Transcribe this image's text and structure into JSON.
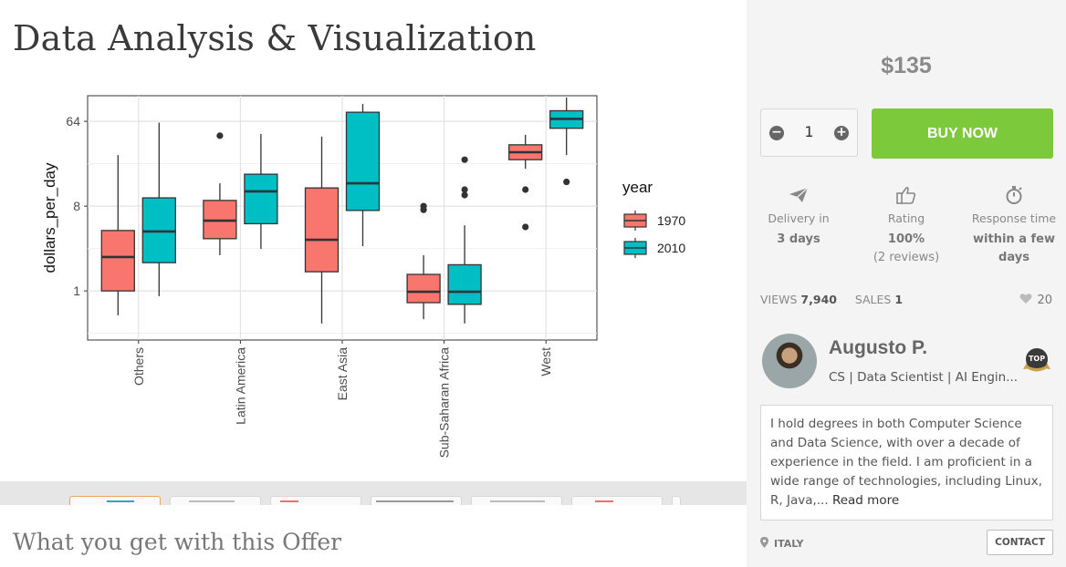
{
  "page": {
    "title": "Data Analysis & Visualization",
    "offer_heading": "What you get with this Offer"
  },
  "chart_data": {
    "type": "boxplot",
    "xlabel": "",
    "ylabel": "dollars_per_day",
    "y_scale": "log2",
    "y_ticks": [
      1,
      8,
      64
    ],
    "y_tick_labels": [
      "1",
      "8",
      "64"
    ],
    "categories": [
      "Others",
      "Latin America",
      "East Asia",
      "Sub-Saharan Africa",
      "West"
    ],
    "legend": {
      "title": "year",
      "position": "right"
    },
    "grid": true,
    "series": [
      {
        "name": "1970",
        "color": "#F8766D",
        "boxes": [
          {
            "whisker_low": 0.55,
            "q1": 1.0,
            "median": 2.3,
            "q3": 4.4,
            "whisker_high": 28,
            "outliers": []
          },
          {
            "whisker_low": 2.4,
            "q1": 3.6,
            "median": 5.6,
            "q3": 9.2,
            "whisker_high": 14,
            "outliers": [
              45
            ]
          },
          {
            "whisker_low": 0.45,
            "q1": 1.6,
            "median": 3.5,
            "q3": 12.5,
            "whisker_high": 44,
            "outliers": []
          },
          {
            "whisker_low": 0.5,
            "q1": 0.75,
            "median": 0.98,
            "q3": 1.5,
            "whisker_high": 2.4,
            "outliers": [
              7.3,
              8.0
            ]
          },
          {
            "whisker_low": 20,
            "q1": 25,
            "median": 30,
            "q3": 36,
            "whisker_high": 46,
            "outliers": [
              12,
              4.8
            ]
          }
        ]
      },
      {
        "name": "2010",
        "color": "#00BFC4",
        "boxes": [
          {
            "whisker_low": 0.88,
            "q1": 2.0,
            "median": 4.3,
            "q3": 9.8,
            "whisker_high": 62,
            "outliers": []
          },
          {
            "whisker_low": 2.8,
            "q1": 5.2,
            "median": 11.5,
            "q3": 17.5,
            "whisker_high": 47,
            "outliers": []
          },
          {
            "whisker_low": 3.0,
            "q1": 7.2,
            "median": 14.0,
            "q3": 80,
            "whisker_high": 98,
            "outliers": []
          },
          {
            "whisker_low": 0.45,
            "q1": 0.72,
            "median": 0.98,
            "q3": 1.9,
            "whisker_high": 5.0,
            "outliers": [
              10.5,
              12,
              25
            ]
          },
          {
            "whisker_low": 28,
            "q1": 54,
            "median": 68,
            "q3": 83,
            "whisker_high": 115,
            "outliers": [
              14.5
            ]
          }
        ]
      }
    ],
    "ylim": [
      0.3,
      120
    ]
  },
  "sidebar": {
    "price": "$135",
    "quantity": "1",
    "minus_symbol": "−",
    "plus_symbol": "+",
    "buy_label": "BUY NOW",
    "delivery_label": "Delivery in",
    "delivery_value": "3 days",
    "rating_label": "Rating",
    "rating_value": "100%",
    "rating_reviews": "(2 reviews)",
    "response_label": "Response time",
    "response_value": "within a few days",
    "views_label": "VIEWS",
    "views_value": "7,940",
    "sales_label": "SALES",
    "sales_value": "1",
    "likes": "20",
    "seller_name": "Augusto P.",
    "seller_role": "CS | Data Scientist | AI Engin...",
    "bio": "I hold degrees in both Computer Science and Data Science, with over a decade of experience in the field. I am proficient in a wide range of technologies, including Linux, R, Java,...",
    "read_more": "Read more",
    "country": "ITALY",
    "contact_label": "CONTACT",
    "badge_text": "TOP"
  },
  "colors": {
    "buy_button": "#7cc93c",
    "series_1970": "#F8766D",
    "series_2010": "#00BFC4"
  }
}
